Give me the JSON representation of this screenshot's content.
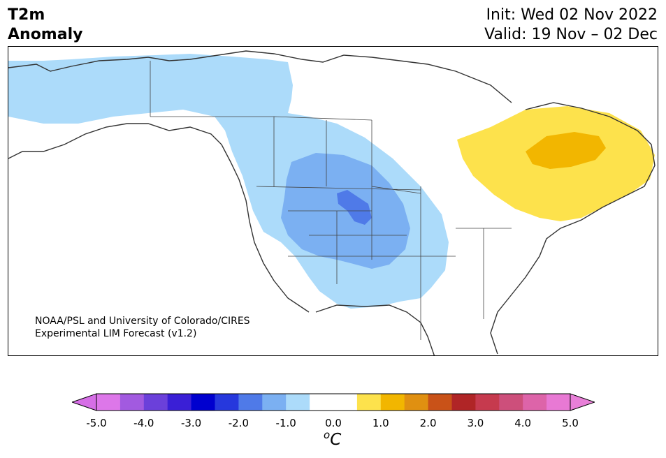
{
  "header": {
    "title_line1": "T2m",
    "title_line2": "Anomaly",
    "init": "Init: Wed 02 Nov 2022",
    "valid": "Valid: 19 Nov – 02 Dec"
  },
  "map": {
    "credit_line1": "NOAA/PSL and University of Colorado/CIRES",
    "credit_line2": "Experimental LIM Forecast (v1.2)",
    "region": "North America",
    "anomalies": [
      {
        "area": "western Canada and western/central US",
        "level": "-1.0 to -0.5",
        "color": "#acdbfa"
      },
      {
        "area": "northern Rockies and Great Basin",
        "level": "-1.5 to -1.0",
        "color": "#7bb0f2"
      },
      {
        "area": "Wyoming / Colorado core",
        "level": "-2.0 to -1.5",
        "color": "#4f7ae8"
      },
      {
        "area": "Quebec",
        "level": "0.5 to 1.0",
        "color": "#fde24c"
      },
      {
        "area": "central Quebec core",
        "level": "1.0 to 1.5",
        "color": "#f2b600"
      }
    ]
  },
  "colorbar": {
    "unit": "C",
    "unit_prefix": "o",
    "ticks": [
      "-5.0",
      "-4.0",
      "-3.0",
      "-2.0",
      "-1.0",
      "0.0",
      "1.0",
      "2.0",
      "3.0",
      "4.0",
      "5.0"
    ],
    "colors": [
      "#dd77e9",
      "#a25ae0",
      "#6b40da",
      "#3a1fd6",
      "#0000cf",
      "#2638dd",
      "#4f7ae8",
      "#7bb0f2",
      "#acdbfa",
      "#ffffff",
      "#ffffff",
      "#fde24c",
      "#f2b600",
      "#e09011",
      "#c95218",
      "#b02526",
      "#c63a4e",
      "#cd4f7b",
      "#dd64a9",
      "#e879d4"
    ],
    "under_color": "#d66ee6",
    "over_color": "#e87fd8"
  }
}
